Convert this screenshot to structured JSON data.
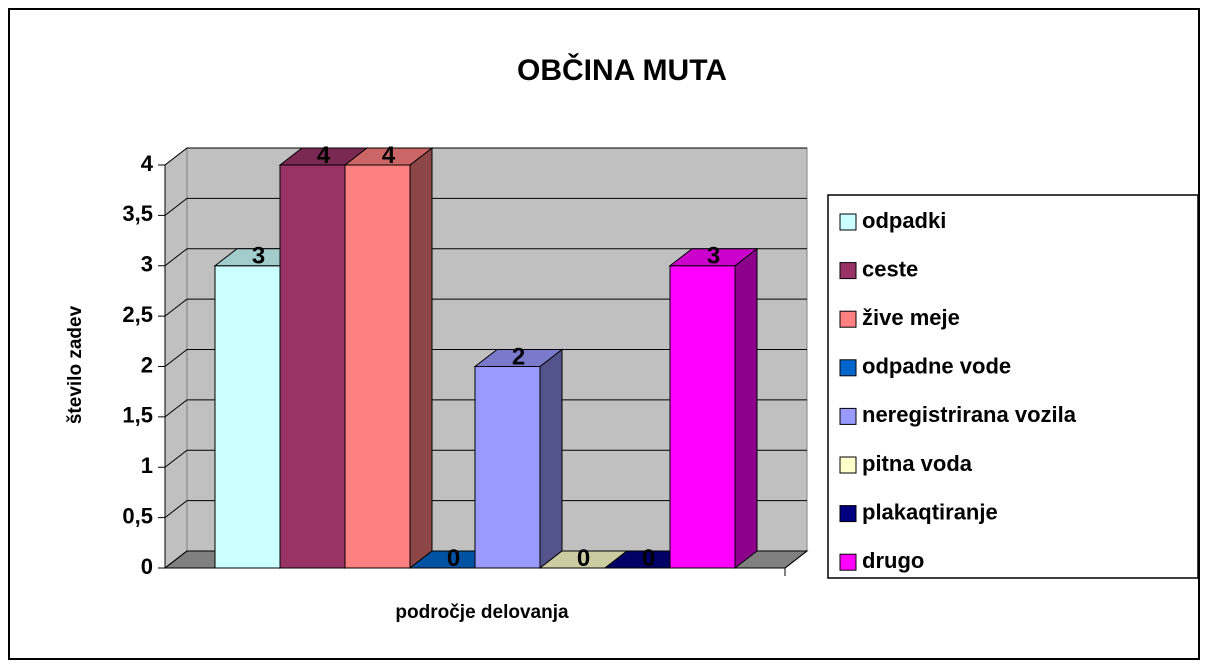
{
  "chart_data": {
    "type": "bar3d",
    "title": "OBČINA MUTA",
    "y_label": "število zadev",
    "x_label": "področje delovanja",
    "ylim": [
      0,
      4
    ],
    "yticks": [
      0,
      {
        "value": 0.5,
        "label": "0,5"
      },
      1,
      {
        "value": 1.5,
        "label": "1,5"
      },
      2,
      {
        "value": 2.5,
        "label": "2,5"
      },
      3,
      {
        "value": 3.5,
        "label": "3,5"
      },
      4
    ],
    "grid": true,
    "legend": "right",
    "series": [
      {
        "name": "odpadki",
        "color": "#ccffff",
        "values": [
          3
        ]
      },
      {
        "name": "ceste",
        "color": "#993366",
        "values": [
          4
        ]
      },
      {
        "name": "žive meje",
        "color": "#ff8080",
        "values": [
          4
        ]
      },
      {
        "name": "odpadne vode",
        "color": "#0066cc",
        "values": [
          0
        ]
      },
      {
        "name": "neregistrirana vozila",
        "color": "#9999ff",
        "values": [
          2
        ]
      },
      {
        "name": "pitna voda",
        "color": "#ffffcc",
        "values": [
          0
        ]
      },
      {
        "name": "plakaqtiranje",
        "color": "#000080",
        "values": [
          0
        ]
      },
      {
        "name": "drugo",
        "color": "#ff00ff",
        "values": [
          3
        ]
      }
    ]
  }
}
